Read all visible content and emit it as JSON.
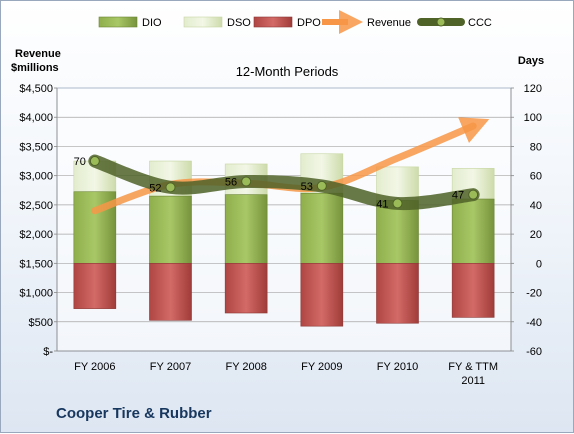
{
  "chart_data": {
    "type": "bar",
    "title": "12-Month Periods",
    "company": "Cooper Tire & Rubber",
    "left_axis": {
      "label_line1": "Revenue",
      "label_line2": "$millions",
      "ylim": [
        0,
        4500
      ],
      "ticks": [
        "$-",
        "$500",
        "$1,000",
        "$1,500",
        "$2,000",
        "$2,500",
        "$3,000",
        "$3,500",
        "$4,000",
        "$4,500"
      ]
    },
    "right_axis": {
      "label": "Days",
      "ylim": [
        -60,
        120
      ],
      "ticks": [
        "-60",
        "-40",
        "-20",
        "0",
        "20",
        "40",
        "60",
        "80",
        "100",
        "120"
      ]
    },
    "categories": [
      [
        "FY 2006"
      ],
      [
        "FY 2007"
      ],
      [
        "FY 2008"
      ],
      [
        "FY 2009"
      ],
      [
        "FY 2010"
      ],
      [
        "FY & TTM",
        "2011"
      ]
    ],
    "series": [
      {
        "name": "DIO",
        "values": [
          49,
          46,
          47,
          48,
          43,
          44
        ],
        "color": "#77933c"
      },
      {
        "name": "DSO",
        "values": [
          21,
          24,
          21,
          27,
          23,
          21
        ],
        "color": "#d7e4bd"
      },
      {
        "name": "DPO",
        "values": [
          -31,
          -39,
          -34,
          -43,
          -41,
          -37
        ],
        "color": "#c0504d"
      }
    ],
    "revenue": {
      "name": "Revenue",
      "values": [
        2400,
        2850,
        2870,
        2800,
        3300,
        3850
      ],
      "color": "#f79646"
    },
    "ccc": {
      "name": "CCC",
      "values": [
        70,
        52,
        56,
        53,
        41,
        47
      ],
      "color": "#4f6228"
    },
    "legend_position": "top",
    "gridlines": true
  }
}
